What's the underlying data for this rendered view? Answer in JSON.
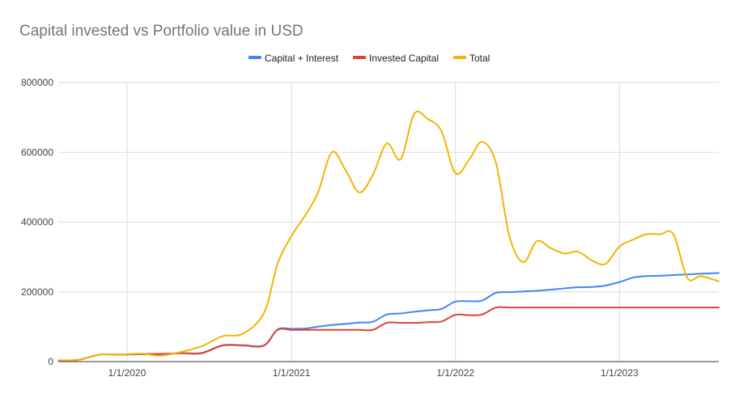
{
  "chart_data": {
    "type": "line",
    "title": "Capital invested vs Portfolio value in USD",
    "xlabel": "",
    "ylabel": "",
    "x_tick_labels": [
      "1/1/2020",
      "1/1/2021",
      "1/1/2022",
      "1/1/2023"
    ],
    "y_tick_labels": [
      "0",
      "200000",
      "400000",
      "600000",
      "800000"
    ],
    "ylim": [
      0,
      800000
    ],
    "xlim": [
      "2019-08-01",
      "2023-08-10"
    ],
    "grid": true,
    "legend_position": "top",
    "x": [
      "2019-08-01",
      "2019-09-15",
      "2019-11-01",
      "2019-12-15",
      "2020-02-01",
      "2020-03-15",
      "2020-05-01",
      "2020-06-15",
      "2020-08-01",
      "2020-09-15",
      "2020-11-01",
      "2020-12-01",
      "2021-01-01",
      "2021-02-01",
      "2021-03-01",
      "2021-04-01",
      "2021-05-01",
      "2021-06-01",
      "2021-07-01",
      "2021-08-01",
      "2021-09-01",
      "2021-10-01",
      "2021-11-01",
      "2021-12-01",
      "2022-01-01",
      "2022-02-01",
      "2022-03-01",
      "2022-04-01",
      "2022-05-01",
      "2022-06-01",
      "2022-07-01",
      "2022-08-01",
      "2022-09-01",
      "2022-10-01",
      "2022-11-01",
      "2022-12-01",
      "2023-01-01",
      "2023-02-01",
      "2023-03-01",
      "2023-04-01",
      "2023-05-01",
      "2023-06-01",
      "2023-07-01",
      "2023-08-10"
    ],
    "series": [
      {
        "name": "Capital + Interest",
        "color": "#4285f4",
        "values": [
          3000,
          5000,
          20000,
          20000,
          21000,
          20000,
          24000,
          25000,
          47000,
          47000,
          47000,
          92000,
          94000,
          95000,
          100000,
          105000,
          108000,
          112000,
          114000,
          135000,
          138000,
          143000,
          147000,
          151000,
          172000,
          173000,
          175000,
          197000,
          199000,
          201000,
          203000,
          206000,
          210000,
          213000,
          214000,
          218000,
          228000,
          241000,
          245000,
          246000,
          248000,
          250000,
          252000,
          254000
        ]
      },
      {
        "name": "Invested Capital",
        "color": "#db4437",
        "values": [
          3000,
          5000,
          20000,
          20000,
          22000,
          22000,
          24000,
          24000,
          46000,
          46000,
          46000,
          91000,
          91000,
          91000,
          91000,
          91000,
          91000,
          91000,
          91000,
          111000,
          111000,
          111000,
          113000,
          115000,
          134000,
          133000,
          135000,
          155000,
          155000,
          155000,
          155000,
          155000,
          155000,
          155000,
          155000,
          155000,
          155000,
          155000,
          155000,
          155000,
          155000,
          155000,
          155000,
          155000
        ]
      },
      {
        "name": "Total",
        "color": "#f4b400",
        "values": [
          3000,
          5000,
          20000,
          20000,
          23000,
          17000,
          28000,
          44000,
          73000,
          80000,
          140000,
          280000,
          360000,
          420000,
          485000,
          600000,
          550000,
          485000,
          535000,
          625000,
          580000,
          710000,
          695000,
          660000,
          540000,
          580000,
          630000,
          570000,
          360000,
          285000,
          345000,
          325000,
          310000,
          315000,
          290000,
          280000,
          330000,
          350000,
          365000,
          365000,
          365000,
          240000,
          245000,
          230000
        ]
      }
    ]
  }
}
